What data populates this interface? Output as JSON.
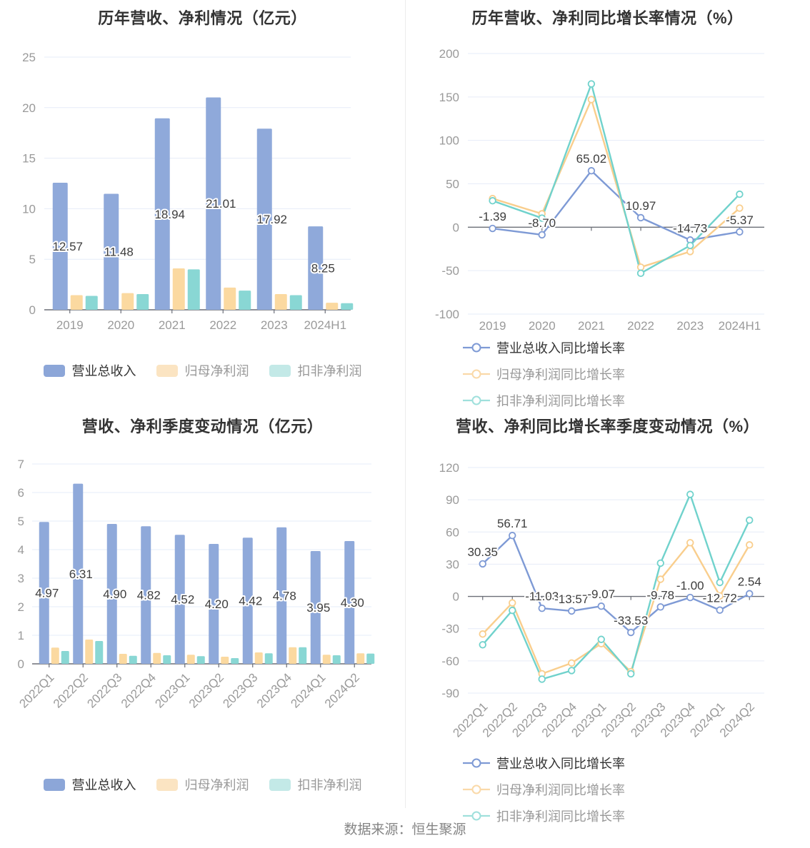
{
  "footer": {
    "text": "数据来源：恒生聚源"
  },
  "colors": {
    "revenue_bar": "#8FA9DA",
    "net_profit_bar": "#FBD9A0",
    "non_gaap_bar": "#89D7D4",
    "revenue_line": "#7E9AD5",
    "net_profit_line": "#F9CE8D",
    "non_gaap_line": "#70D2CC",
    "legend_blue": "#8CA6D8",
    "legend_orange": "#FBE4C2",
    "legend_teal": "#C3E9E7",
    "legend_line_blue": "#7E9AD5",
    "legend_line_orange": "#FAD9A8",
    "legend_line_teal": "#9FE0DC",
    "grid": "#E6ECF8",
    "axis": "#6B6F77",
    "axis_label": "#9A9A9A",
    "title": "#333333",
    "value_label": "#3D3D3D",
    "footer_text": "#858585",
    "divider": "#ECECEC",
    "legend_text_primary": "#333333",
    "legend_text_secondary": "#999999"
  },
  "chart_data": [
    {
      "id": "yearly-bar",
      "type": "bar",
      "title": "历年营收、净利情况（亿元）",
      "categories": [
        "2019",
        "2020",
        "2021",
        "2022",
        "2023",
        "2024H1"
      ],
      "ticks": [
        0,
        5,
        10,
        15,
        20,
        25
      ],
      "ylim": [
        0,
        25
      ],
      "grid": true,
      "legend_position": "bottom-center",
      "series": [
        {
          "name": "营业总收入",
          "values": [
            12.57,
            11.48,
            18.94,
            21.01,
            17.92,
            8.25
          ],
          "labels": [
            "12.57",
            "11.48",
            "18.94",
            "21.01",
            "17.92",
            "8.25"
          ]
        },
        {
          "name": "归母净利润",
          "values": [
            1.45,
            1.65,
            4.1,
            2.2,
            1.55,
            0.7
          ]
        },
        {
          "name": "扣非净利润",
          "values": [
            1.38,
            1.55,
            4.0,
            1.9,
            1.45,
            0.65
          ]
        }
      ]
    },
    {
      "id": "yearly-growth",
      "type": "line",
      "title": "历年营收、净利同比增长率情况（%）",
      "categories": [
        "2019",
        "2020",
        "2021",
        "2022",
        "2023",
        "2024H1"
      ],
      "ticks": [
        -100,
        -50,
        0,
        50,
        100,
        150,
        200
      ],
      "ylim": [
        -100,
        200
      ],
      "grid": true,
      "legend_position": "bottom-left-two-rows",
      "series": [
        {
          "name": "营业总收入同比增长率",
          "values": [
            -1.39,
            -8.7,
            65.02,
            10.97,
            -14.73,
            -5.37
          ],
          "labels": [
            "-1.39",
            "-8.70",
            "65.02",
            "10.97",
            "-14.73",
            "-5.37"
          ]
        },
        {
          "name": "归母净利润同比增长率",
          "values": [
            33,
            15.5,
            147,
            -46,
            -28,
            22
          ]
        },
        {
          "name": "扣非净利润同比增长率",
          "values": [
            30.5,
            10.5,
            165,
            -53,
            -21,
            38
          ]
        }
      ]
    },
    {
      "id": "quarterly-bar",
      "type": "bar",
      "title": "营收、净利季度变动情况（亿元）",
      "categories": [
        "2022Q1",
        "2022Q2",
        "2022Q3",
        "2022Q4",
        "2023Q1",
        "2023Q2",
        "2023Q3",
        "2023Q4",
        "2024Q1",
        "2024Q2"
      ],
      "ticks": [
        0,
        1,
        2,
        3,
        4,
        5,
        6,
        7
      ],
      "ylim": [
        0,
        7
      ],
      "grid": true,
      "rotated_x_labels": true,
      "legend_position": "bottom-center",
      "series": [
        {
          "name": "营业总收入",
          "values": [
            4.97,
            6.31,
            4.9,
            4.82,
            4.52,
            4.2,
            4.42,
            4.78,
            3.95,
            4.3
          ],
          "labels": [
            "4.97",
            "6.31",
            "4.90",
            "4.82",
            "4.52",
            "4.20",
            "4.42",
            "4.78",
            "3.95",
            "4.30"
          ]
        },
        {
          "name": "归母净利润",
          "values": [
            0.57,
            0.85,
            0.35,
            0.38,
            0.32,
            0.25,
            0.4,
            0.58,
            0.32,
            0.37
          ]
        },
        {
          "name": "扣非净利润",
          "values": [
            0.45,
            0.8,
            0.28,
            0.3,
            0.27,
            0.2,
            0.37,
            0.58,
            0.3,
            0.36
          ]
        }
      ]
    },
    {
      "id": "quarterly-growth",
      "type": "line",
      "title": "营收、净利同比增长率季度变动情况（%）",
      "categories": [
        "2022Q1",
        "2022Q2",
        "2022Q3",
        "2022Q4",
        "2023Q1",
        "2023Q2",
        "2023Q3",
        "2023Q4",
        "2024Q1",
        "2024Q2"
      ],
      "ticks": [
        -90,
        -60,
        -30,
        0,
        30,
        60,
        90,
        120
      ],
      "ylim": [
        -90,
        120
      ],
      "grid": true,
      "rotated_x_labels": true,
      "legend_position": "bottom-left-two-rows",
      "series": [
        {
          "name": "营业总收入同比增长率",
          "values": [
            30.35,
            56.71,
            -11.03,
            -13.57,
            -9.07,
            -33.53,
            -9.78,
            -1.0,
            -12.72,
            2.54
          ],
          "labels": [
            "30.35",
            "56.71",
            "-11.03",
            "-13.57",
            "-9.07",
            "-33.53",
            "-9.78",
            "-1.00",
            "-12.72",
            "2.54"
          ]
        },
        {
          "name": "归母净利润同比增长率",
          "values": [
            -35,
            -6,
            -72,
            -62,
            -44,
            -70,
            16,
            50,
            0.5,
            48
          ]
        },
        {
          "name": "扣非净利润同比增长率",
          "values": [
            -45,
            -13,
            -77,
            -69,
            -40,
            -72,
            31,
            95,
            13,
            71
          ]
        }
      ]
    }
  ]
}
